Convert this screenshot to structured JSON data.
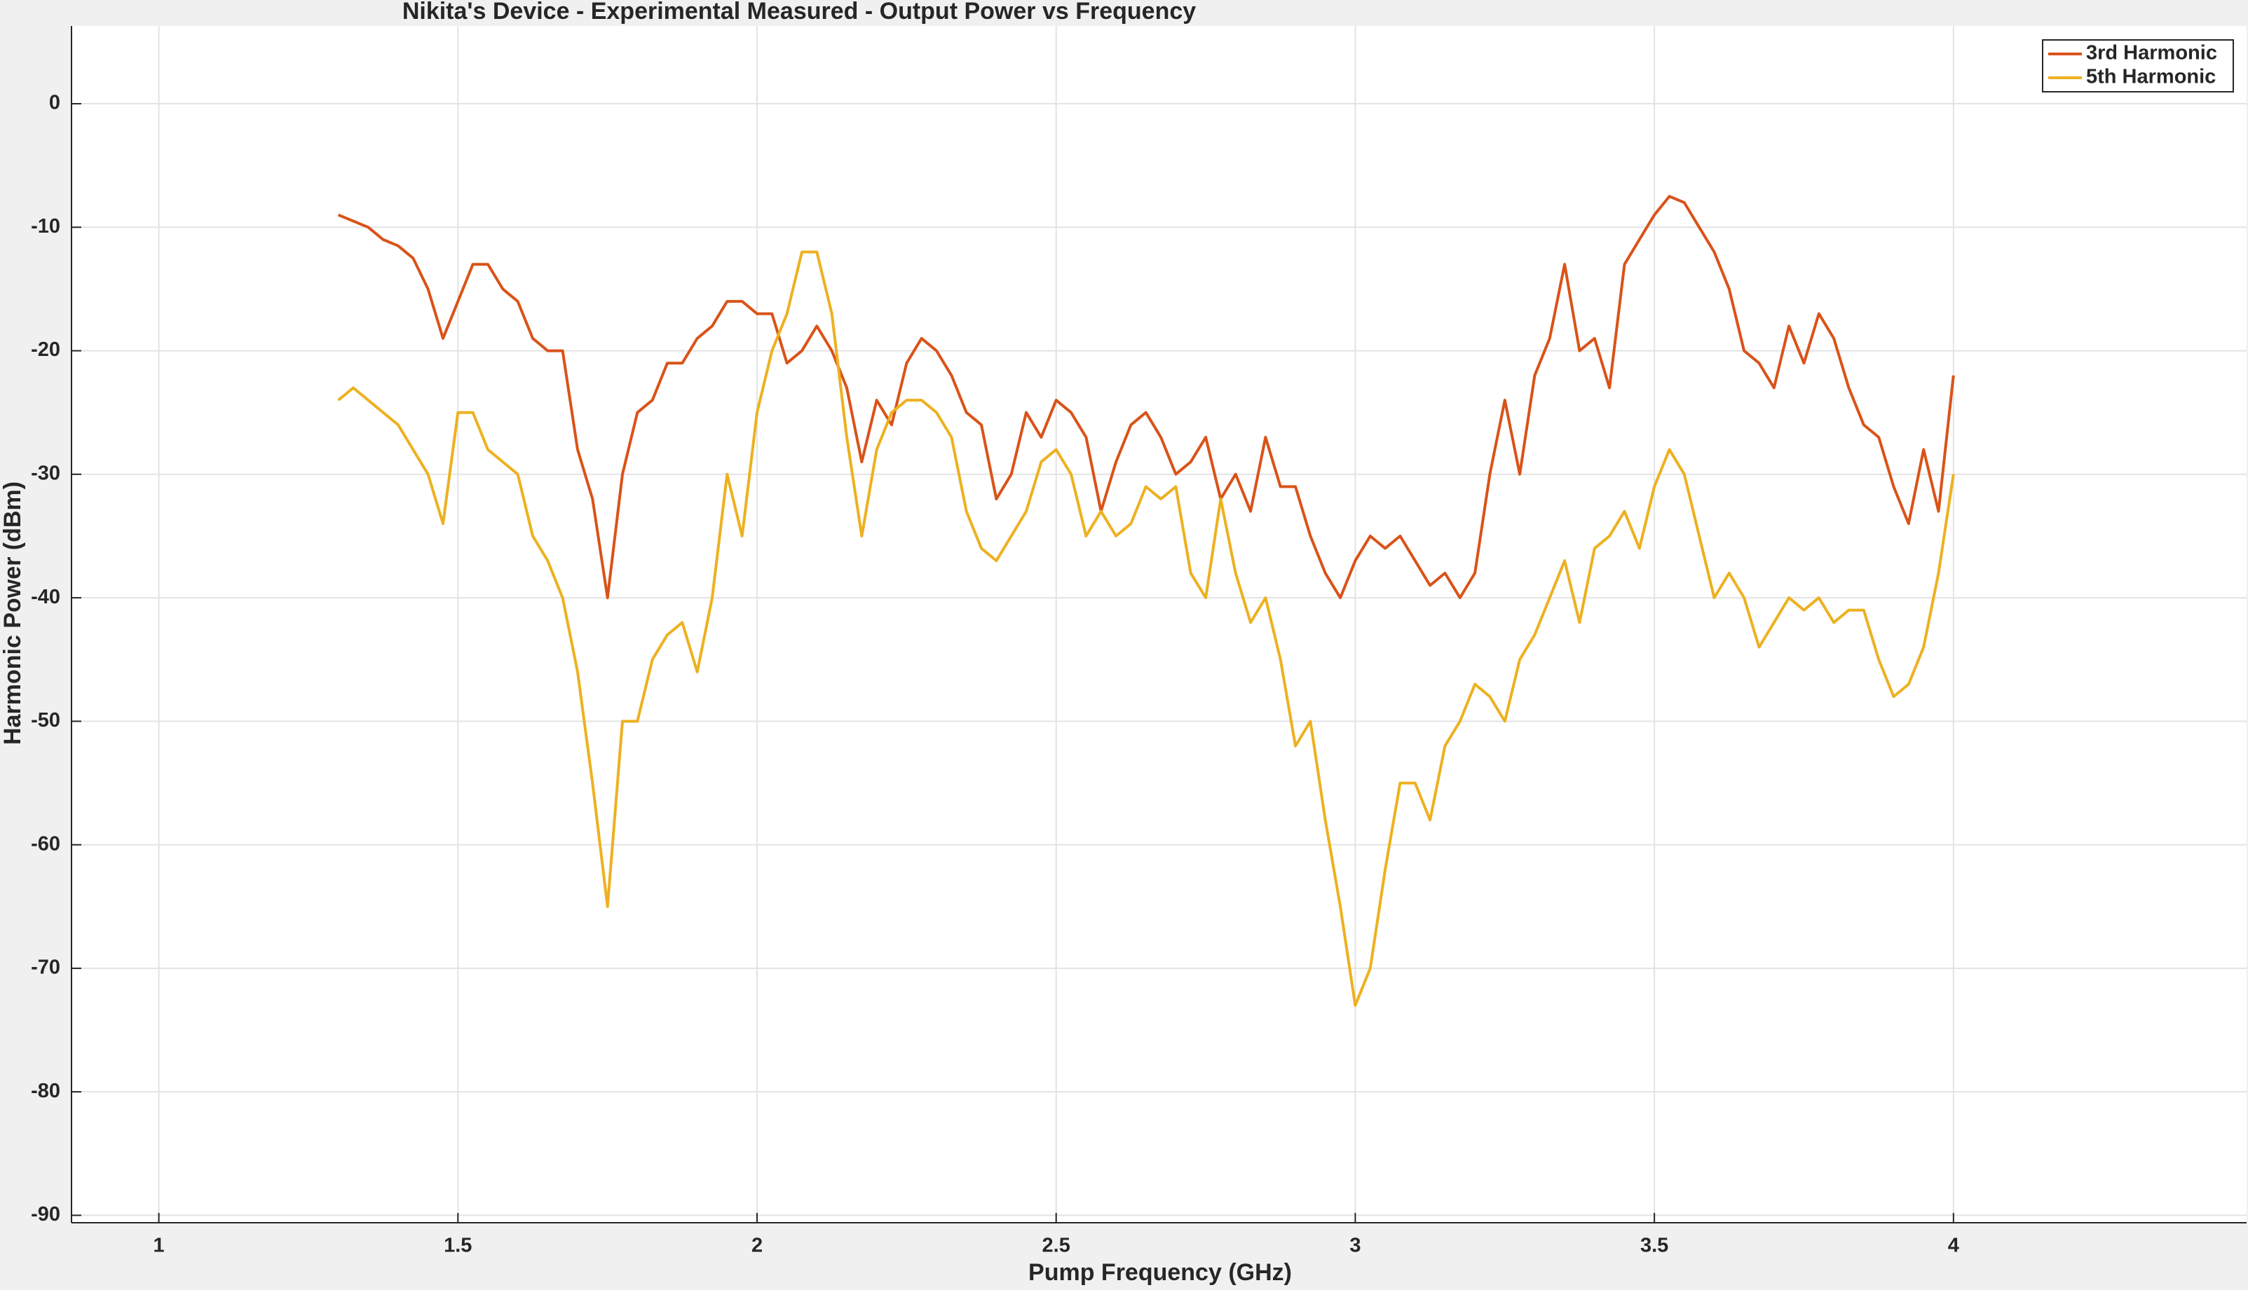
{
  "chart_data": {
    "type": "line",
    "title": "Nikita's Device - Experimental Measured - Output Power vs Frequency",
    "x_label": "Pump Frequency (GHz)",
    "y_label": "Harmonic Power (dBm)",
    "x": [
      1.3,
      1.325,
      1.35,
      1.375,
      1.4,
      1.425,
      1.45,
      1.475,
      1.5,
      1.525,
      1.55,
      1.575,
      1.6,
      1.625,
      1.65,
      1.675,
      1.7,
      1.725,
      1.75,
      1.775,
      1.8,
      1.825,
      1.85,
      1.875,
      1.9,
      1.925,
      1.95,
      1.975,
      2.0,
      2.025,
      2.05,
      2.075,
      2.1,
      2.125,
      2.15,
      2.175,
      2.2,
      2.225,
      2.25,
      2.275,
      2.3,
      2.325,
      2.35,
      2.375,
      2.4,
      2.425,
      2.45,
      2.475,
      2.5,
      2.525,
      2.55,
      2.575,
      2.6,
      2.625,
      2.65,
      2.675,
      2.7,
      2.725,
      2.75,
      2.775,
      2.8,
      2.825,
      2.85,
      2.875,
      2.9,
      2.925,
      2.95,
      2.975,
      3.0,
      3.025,
      3.05,
      3.075,
      3.1,
      3.125,
      3.15,
      3.175,
      3.2,
      3.225,
      3.25,
      3.275,
      3.3,
      3.325,
      3.35,
      3.375,
      3.4,
      3.425,
      3.45,
      3.475,
      3.5,
      3.525,
      3.55,
      3.575,
      3.6,
      3.625,
      3.65,
      3.675,
      3.7,
      3.725,
      3.75,
      3.775,
      3.8,
      3.825,
      3.85,
      3.875,
      3.9,
      3.925,
      3.95,
      3.975,
      4.0
    ],
    "series": [
      {
        "name": "3rd Harmonic",
        "color": "#d95319",
        "values": [
          -9,
          -9.5,
          -10,
          -11,
          -11.5,
          -12.5,
          -15,
          -19,
          -16,
          -13,
          -13,
          -15,
          -16,
          -19,
          -20,
          -20,
          -28,
          -32,
          -40,
          -30,
          -25,
          -24,
          -21,
          -21,
          -19,
          -18,
          -16,
          -16,
          -17,
          -17,
          -21,
          -20,
          -18,
          -20,
          -23,
          -29,
          -24,
          -26,
          -21,
          -19,
          -20,
          -22,
          -25,
          -26,
          -32,
          -30,
          -25,
          -27,
          -24,
          -25,
          -27,
          -33,
          -29,
          -26,
          -25,
          -27,
          -30,
          -29,
          -27,
          -32,
          -30,
          -33,
          -27,
          -31,
          -31,
          -35,
          -38,
          -40,
          -37,
          -35,
          -36,
          -35,
          -37,
          -39,
          -38,
          -40,
          -38,
          -30,
          -24,
          -30,
          -22,
          -19,
          -13,
          -20,
          -19,
          -23,
          -13,
          -11,
          -9,
          -7.5,
          -8,
          -10,
          -12,
          -15,
          -20,
          -21,
          -23,
          -18,
          -21,
          -17,
          -19,
          -23,
          -26,
          -27,
          -31,
          -34,
          -28,
          -33,
          -22
        ]
      },
      {
        "name": "5th Harmonic",
        "color": "#edb120",
        "values": [
          -24,
          -23,
          -24,
          -25,
          -26,
          -28,
          -30,
          -34,
          -25,
          -25,
          -28,
          -29,
          -30,
          -35,
          -37,
          -40,
          -46,
          -55,
          -65,
          -50,
          -50,
          -45,
          -43,
          -42,
          -46,
          -40,
          -30,
          -35,
          -25,
          -20,
          -17,
          -12,
          -12,
          -17,
          -27,
          -35,
          -28,
          -25,
          -24,
          -24,
          -25,
          -27,
          -33,
          -36,
          -37,
          -35,
          -33,
          -29,
          -28,
          -30,
          -35,
          -33,
          -35,
          -34,
          -31,
          -32,
          -31,
          -38,
          -40,
          -32,
          -38,
          -42,
          -40,
          -45,
          -52,
          -50,
          -58,
          -65,
          -73,
          -70,
          -62,
          -55,
          -55,
          -58,
          -52,
          -50,
          -47,
          -48,
          -50,
          -45,
          -43,
          -40,
          -37,
          -42,
          -36,
          -35,
          -33,
          -36,
          -31,
          -28,
          -30,
          -35,
          -40,
          -38,
          -40,
          -44,
          -42,
          -40,
          -41,
          -40,
          -42,
          -41,
          -41,
          -45,
          -48,
          -47,
          -44,
          -38,
          -30
        ]
      }
    ],
    "xlim": [
      0.854,
      4.49
    ],
    "ylim": [
      -90.6,
      6.3
    ],
    "xticks": [
      1,
      1.5,
      2,
      2.5,
      3,
      3.5,
      4
    ],
    "yticks": [
      -90,
      -80,
      -70,
      -60,
      -50,
      -40,
      -30,
      -20,
      -10,
      0
    ],
    "grid": true,
    "legend": "upper right"
  }
}
